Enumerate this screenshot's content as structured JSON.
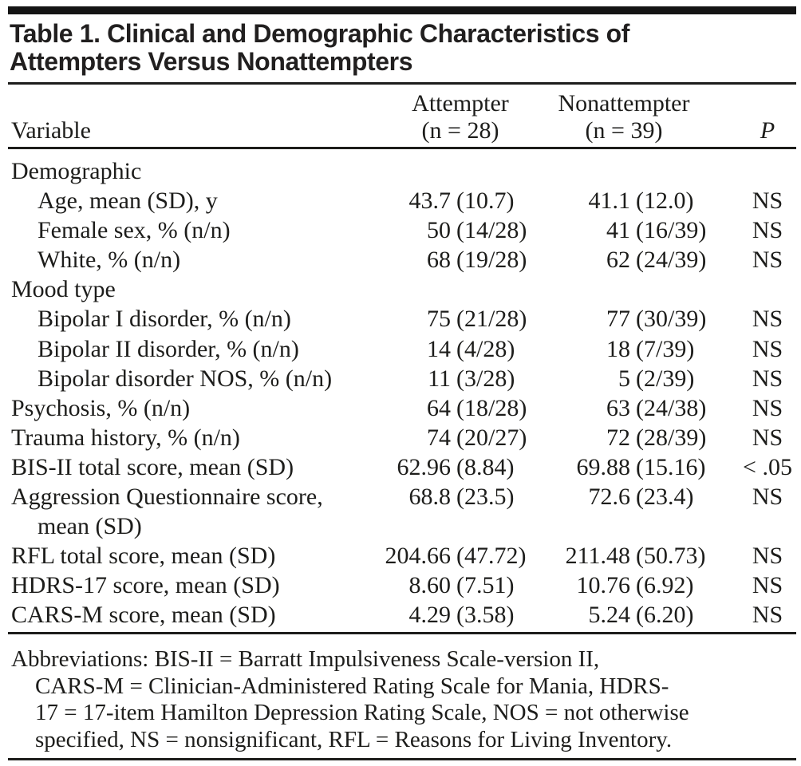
{
  "title": {
    "line1": "Table 1. Clinical and Demographic Characteristics of",
    "line2": "Attempters Versus Nonattempters"
  },
  "header": {
    "variable": "Variable",
    "attempter": {
      "line1": "Attempter",
      "line2": "(n = 28)"
    },
    "nonattempter": {
      "line1": "Nonattempter",
      "line2": "(n = 39)"
    },
    "p": "P"
  },
  "rows": [
    {
      "label": "Demographic",
      "indent": 0,
      "att_num": "",
      "att_paren": "",
      "non_num": "",
      "non_paren": "",
      "p": ""
    },
    {
      "label": "Age, mean (SD), y",
      "indent": 1,
      "att_num": "43.7",
      "att_paren": "(10.7)",
      "non_num": "41.1",
      "non_paren": "(12.0)",
      "p": "NS"
    },
    {
      "label": "Female sex, % (n/n)",
      "indent": 1,
      "att_num": "50",
      "att_paren": "(14/28)",
      "non_num": "41",
      "non_paren": "(16/39)",
      "p": "NS"
    },
    {
      "label": "White, % (n/n)",
      "indent": 1,
      "att_num": "68",
      "att_paren": "(19/28)",
      "non_num": "62",
      "non_paren": "(24/39)",
      "p": "NS"
    },
    {
      "label": "Mood type",
      "indent": 0,
      "att_num": "",
      "att_paren": "",
      "non_num": "",
      "non_paren": "",
      "p": ""
    },
    {
      "label": "Bipolar I disorder, % (n/n)",
      "indent": 1,
      "att_num": "75",
      "att_paren": "(21/28)",
      "non_num": "77",
      "non_paren": "(30/39)",
      "p": "NS"
    },
    {
      "label": "Bipolar II disorder, % (n/n)",
      "indent": 1,
      "att_num": "14",
      "att_paren": "(4/28)",
      "non_num": "18",
      "non_paren": "(7/39)",
      "p": "NS"
    },
    {
      "label": "Bipolar disorder NOS, % (n/n)",
      "indent": 1,
      "att_num": "11",
      "att_paren": "(3/28)",
      "non_num": "5",
      "non_paren": "(2/39)",
      "p": "NS"
    },
    {
      "label": "Psychosis, % (n/n)",
      "indent": 0,
      "att_num": "64",
      "att_paren": "(18/28)",
      "non_num": "63",
      "non_paren": "(24/38)",
      "p": "NS"
    },
    {
      "label": "Trauma history, % (n/n)",
      "indent": 0,
      "att_num": "74",
      "att_paren": "(20/27)",
      "non_num": "72",
      "non_paren": "(28/39)",
      "p": "NS"
    },
    {
      "label": "BIS-II total score, mean (SD)",
      "indent": 0,
      "att_num": "62.96",
      "att_paren": "(8.84)",
      "non_num": "69.88",
      "non_paren": "(15.16)",
      "p": "< .05"
    },
    {
      "label": "Aggression Questionnaire score,",
      "indent": 0,
      "att_num": "68.8",
      "att_paren": "(23.5)",
      "non_num": "72.6",
      "non_paren": "(23.4)",
      "p": "NS"
    },
    {
      "label": "mean (SD)",
      "indent": 1,
      "att_num": "",
      "att_paren": "",
      "non_num": "",
      "non_paren": "",
      "p": ""
    },
    {
      "label": "RFL total score, mean (SD)",
      "indent": 0,
      "att_num": "204.66",
      "att_paren": "(47.72)",
      "non_num": "211.48",
      "non_paren": "(50.73)",
      "p": "NS"
    },
    {
      "label": "HDRS-17 score, mean (SD)",
      "indent": 0,
      "att_num": "8.60",
      "att_paren": "(7.51)",
      "non_num": "10.76",
      "non_paren": "(6.92)",
      "p": "NS"
    },
    {
      "label": "CARS-M score, mean (SD)",
      "indent": 0,
      "att_num": "4.29",
      "att_paren": "(3.58)",
      "non_num": "5.24",
      "non_paren": "(6.20)",
      "p": "NS"
    }
  ],
  "footnote": {
    "lines": [
      "Abbreviations: BIS-II = Barratt Impulsiveness Scale-version II,",
      "CARS-M = Clinician-Administered Rating Scale for Mania, HDRS-",
      "17 = 17-item Hamilton Depression Rating Scale, NOS = not otherwise",
      "specified, NS = nonsignificant, RFL = Reasons for Living Inventory."
    ]
  },
  "colors": {
    "text": "#1d1d1b",
    "bar": "#141414",
    "background": "#ffffff"
  }
}
